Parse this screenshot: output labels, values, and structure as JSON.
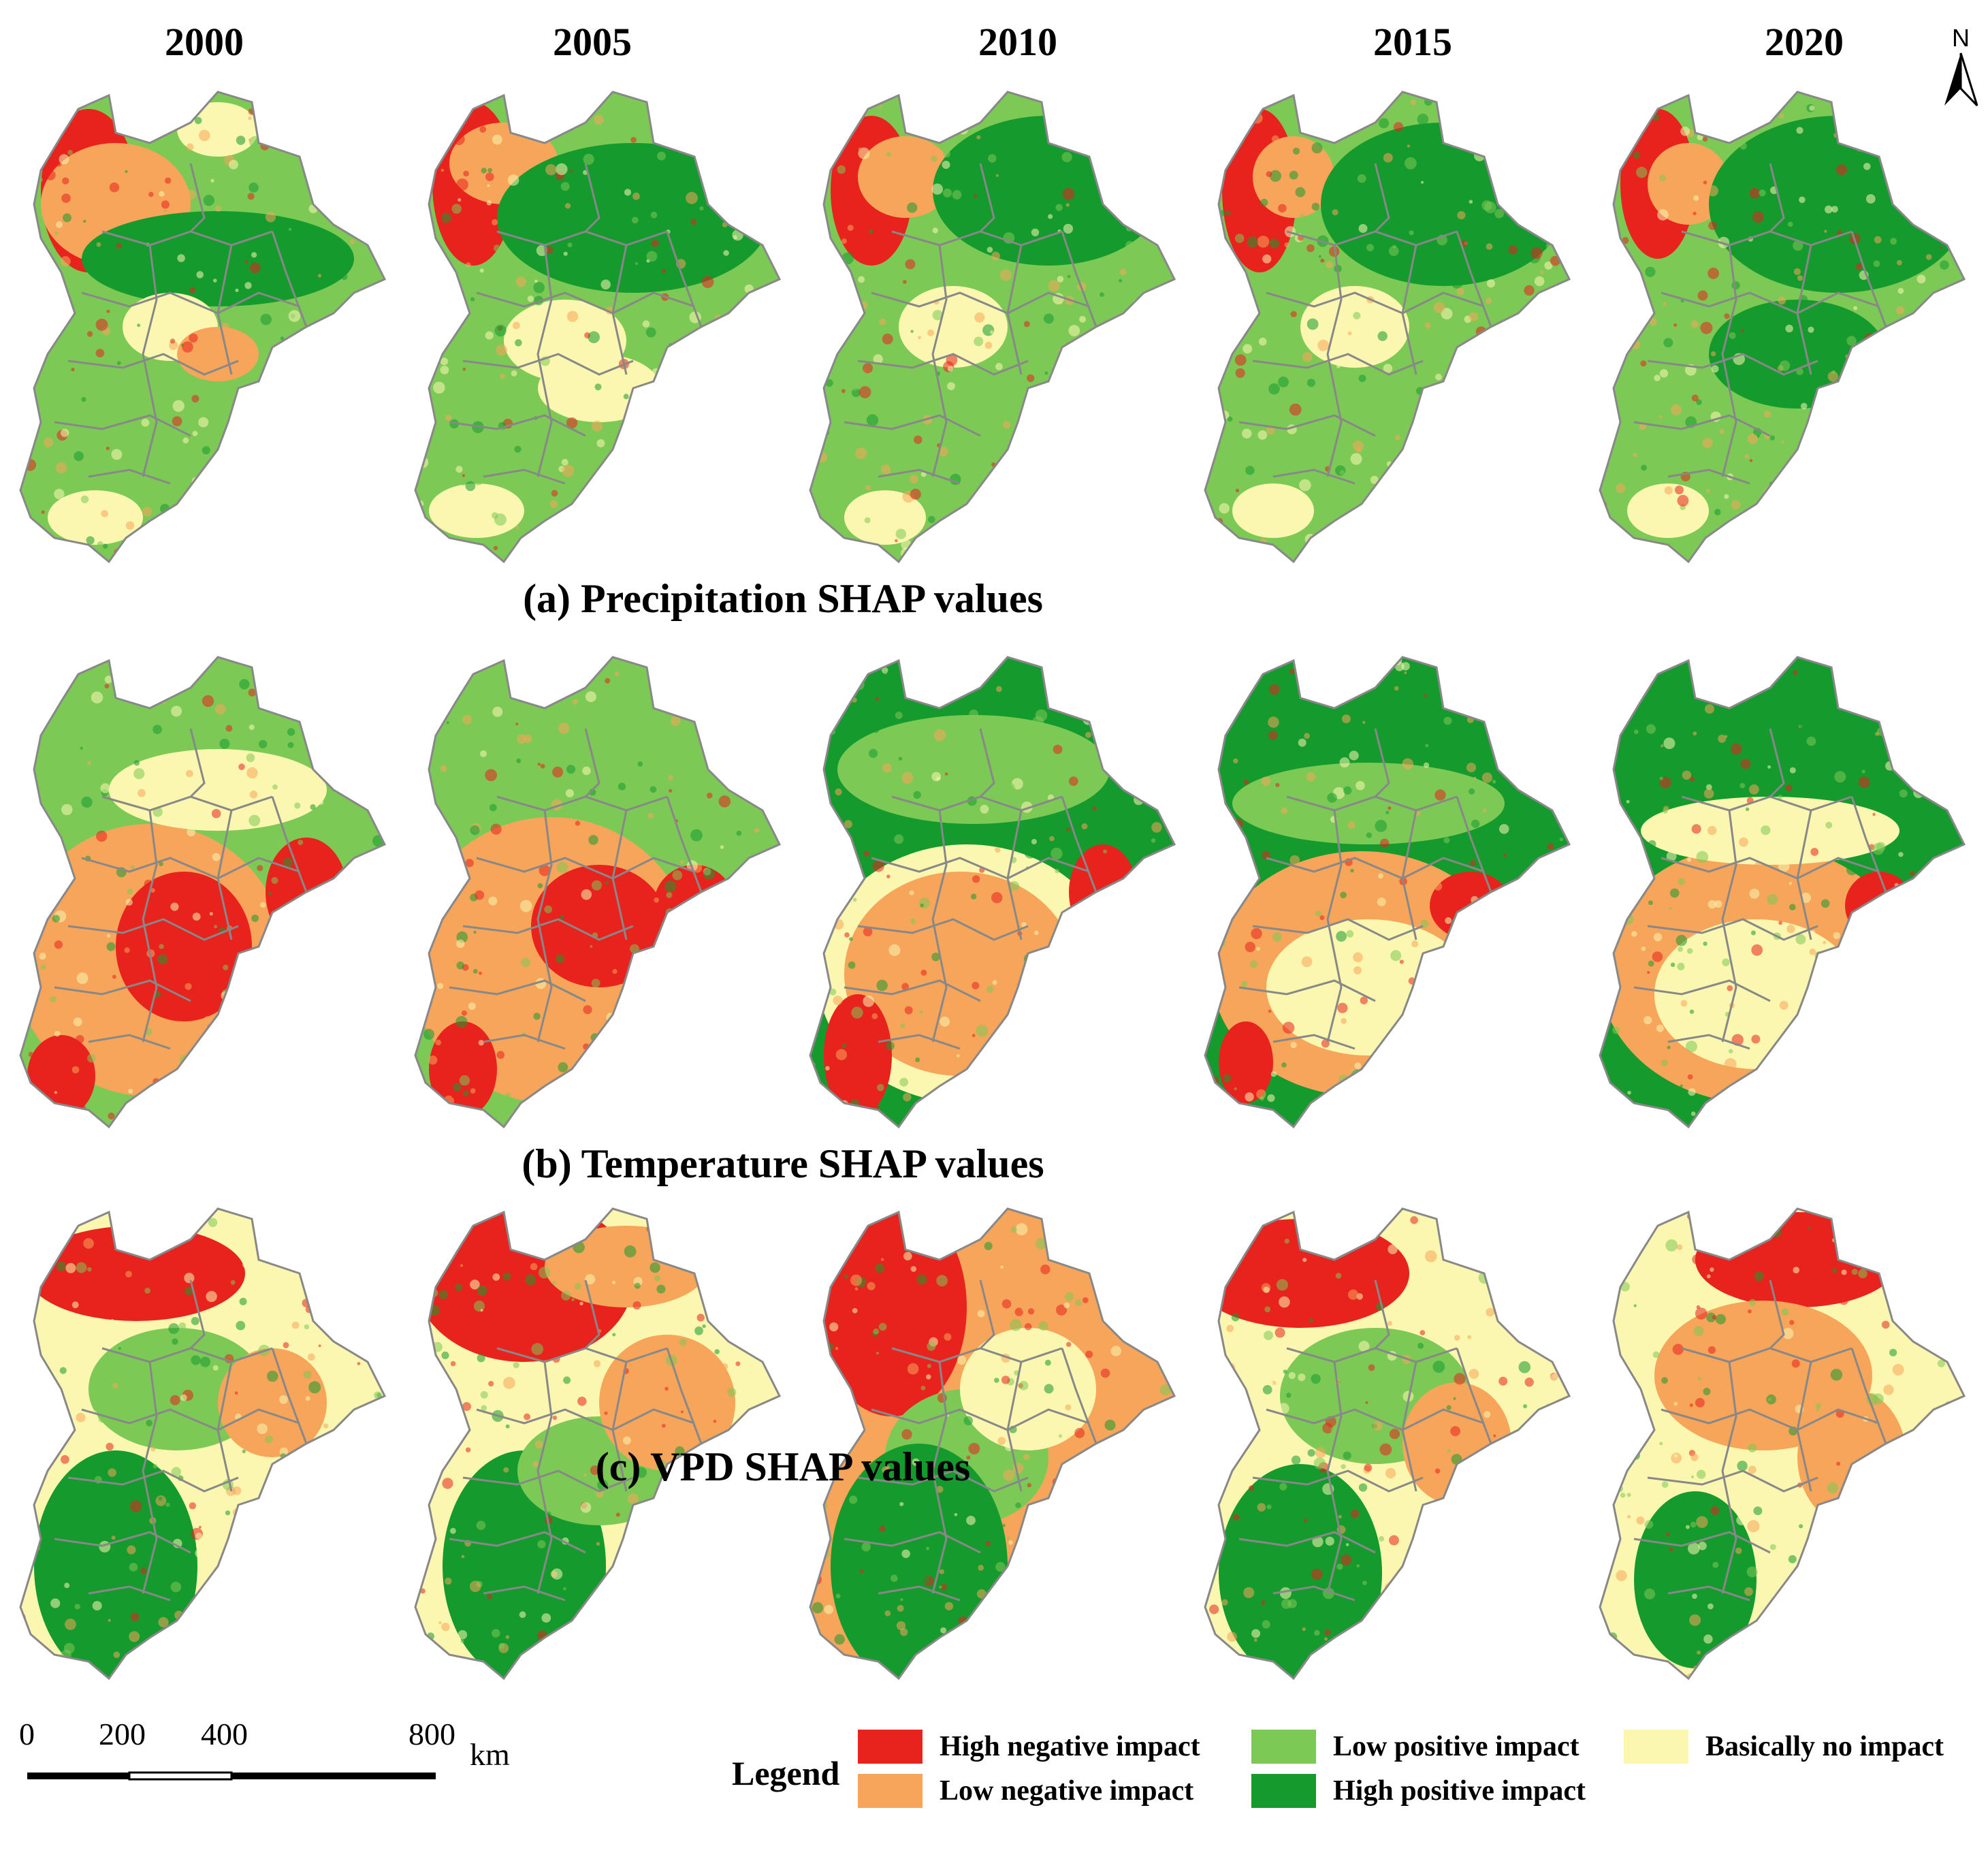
{
  "years": [
    "2000",
    "2005",
    "2010",
    "2015",
    "2020"
  ],
  "panels": [
    {
      "title": "(a) Precipitation SHAP values",
      "id": "precip"
    },
    {
      "title": "(b) Temperature SHAP values",
      "id": "temp"
    },
    {
      "title": "(c) VPD SHAP values",
      "id": "vpd"
    }
  ],
  "north_label": "N",
  "scale_bar": {
    "labels": [
      "0",
      "200",
      "400",
      "800"
    ],
    "unit": "km"
  },
  "legend": {
    "title": "Legend",
    "items": [
      {
        "label": "High negative impact",
        "color": "#e8221d"
      },
      {
        "label": "Low negative impact",
        "color": "#f7a55a"
      },
      {
        "label": "Low positive impact",
        "color": "#7dc955"
      },
      {
        "label": "High positive impact",
        "color": "#159a2e"
      },
      {
        "label": "Basically no impact",
        "color": "#fbf7b0"
      }
    ]
  },
  "boundary_color": "#888888"
}
